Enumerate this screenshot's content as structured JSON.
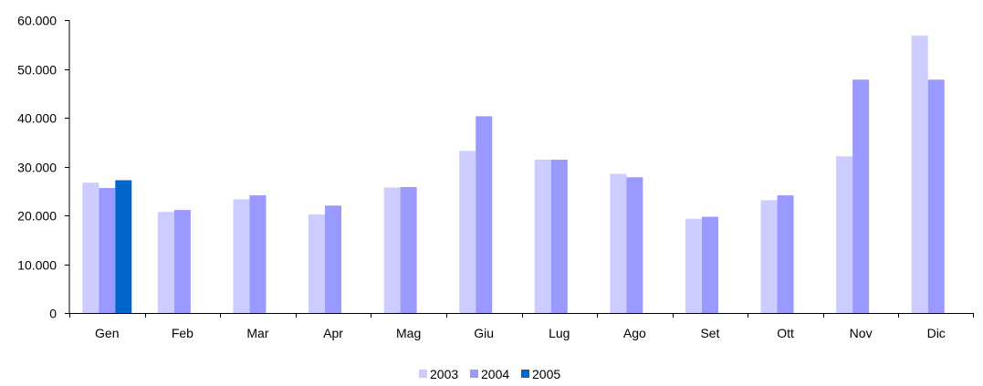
{
  "chart_data": {
    "type": "bar",
    "categories": [
      "Gen",
      "Feb",
      "Mar",
      "Apr",
      "Mag",
      "Giu",
      "Lug",
      "Ago",
      "Set",
      "Ott",
      "Nov",
      "Dic"
    ],
    "series": [
      {
        "name": "2003",
        "color": "#ccccff",
        "values": [
          26700,
          20700,
          23300,
          20200,
          25700,
          33200,
          31400,
          28500,
          19300,
          23100,
          32100,
          56800
        ]
      },
      {
        "name": "2004",
        "color": "#9999ff",
        "values": [
          25600,
          21100,
          24100,
          22000,
          25800,
          40300,
          31400,
          27800,
          19700,
          24100,
          47800,
          47800
        ]
      },
      {
        "name": "2005",
        "color": "#0066cc",
        "values": [
          27200,
          null,
          null,
          null,
          null,
          null,
          null,
          null,
          null,
          null,
          null,
          null
        ]
      }
    ],
    "yticks": [
      "0",
      "10.000",
      "20.000",
      "30.000",
      "40.000",
      "50.000",
      "60.000"
    ],
    "ylim": [
      0,
      60000
    ],
    "grid": false,
    "legend_position": "bottom"
  }
}
